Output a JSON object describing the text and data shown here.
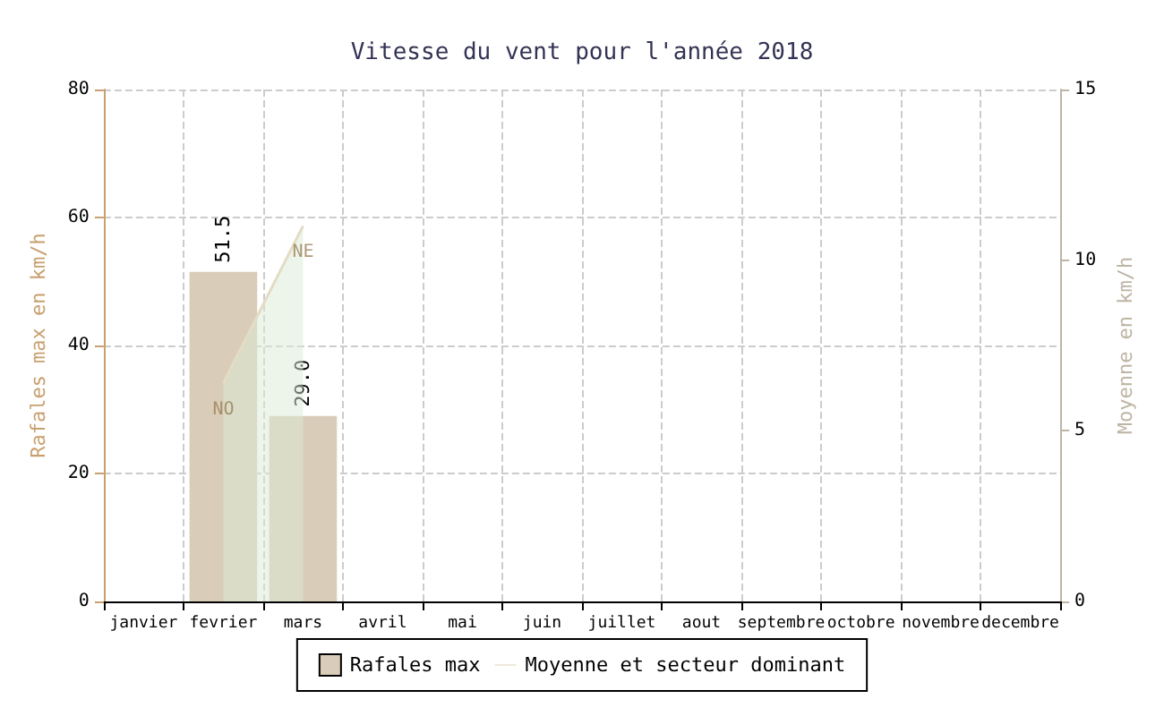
{
  "chart_data": {
    "type": "bar",
    "title": "Vitesse du vent pour l'année 2018",
    "ylabel": "Rafales max en km/h",
    "y2label": "Moyenne en km/h",
    "categories": [
      "janvier",
      "fevrier",
      "mars",
      "avril",
      "mai",
      "juin",
      "juillet",
      "aout",
      "septembre",
      "octobre",
      "novembre",
      "decembre"
    ],
    "series": [
      {
        "name": "Rafales max",
        "color": "#d9cdb9",
        "values": [
          null,
          51.5,
          29.0,
          null,
          null,
          null,
          null,
          null,
          null,
          null,
          null,
          null
        ],
        "value_labels": [
          null,
          "51.5",
          "29.0",
          null,
          null,
          null,
          null,
          null,
          null,
          null,
          null,
          null
        ]
      },
      {
        "name": "Moyenne et secteur dominant",
        "type": "area",
        "axis": "y2",
        "color": "#e3dcc4",
        "values": [
          null,
          6.4,
          11.0,
          null,
          null,
          null,
          null,
          null,
          null,
          null,
          null,
          null
        ]
      }
    ],
    "annotations": [
      {
        "text": "NO",
        "x": "fevrier",
        "y": 30
      },
      {
        "text": "NE",
        "x": "mars",
        "y": 54.5
      }
    ],
    "ylim": [
      0,
      80
    ],
    "yticks": [
      0,
      20,
      40,
      60,
      80
    ],
    "y2lim": [
      0,
      15
    ],
    "y2ticks": [
      0,
      5,
      10,
      15
    ],
    "grid": true,
    "legend": "bottom"
  }
}
